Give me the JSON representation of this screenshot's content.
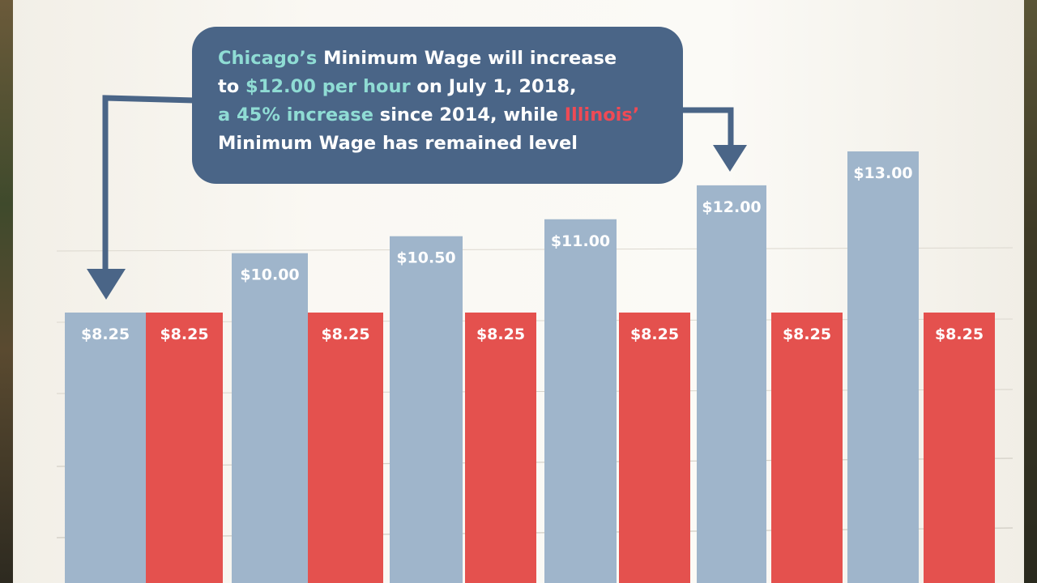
{
  "callout": {
    "line1": {
      "city": "Chicago’s",
      "rest": " Minimum Wage will increase"
    },
    "line2": {
      "pre": "to ",
      "amount": "$12.00 per hour",
      "rest": " on July 1, 2018,"
    },
    "line3": {
      "pct": "a 45% increase",
      "mid": " since 2014, while ",
      "state": "Illinois’"
    },
    "line4": "Minimum Wage has remained level"
  },
  "chart_data": {
    "type": "bar",
    "series": [
      {
        "values": [
          8.25,
          10.0,
          10.5,
          11.0,
          12.0,
          13.0
        ],
        "labels": [
          "$8.25",
          "$10.00",
          "$10.50",
          "$11.00",
          "$12.00",
          "$13.00"
        ],
        "color": "#9fb5cb"
      },
      {
        "values": [
          8.25,
          8.25,
          8.25,
          8.25,
          8.25,
          8.25
        ],
        "labels": [
          "$8.25",
          "$8.25",
          "$8.25",
          "$8.25",
          "$8.25",
          "$8.25"
        ],
        "color": "#e4514e"
      }
    ]
  },
  "colors": {
    "callout": "#4a6587",
    "highlight": "#8fdcd4",
    "illinois": "#ef4a55",
    "arrow": "#4a6587"
  }
}
